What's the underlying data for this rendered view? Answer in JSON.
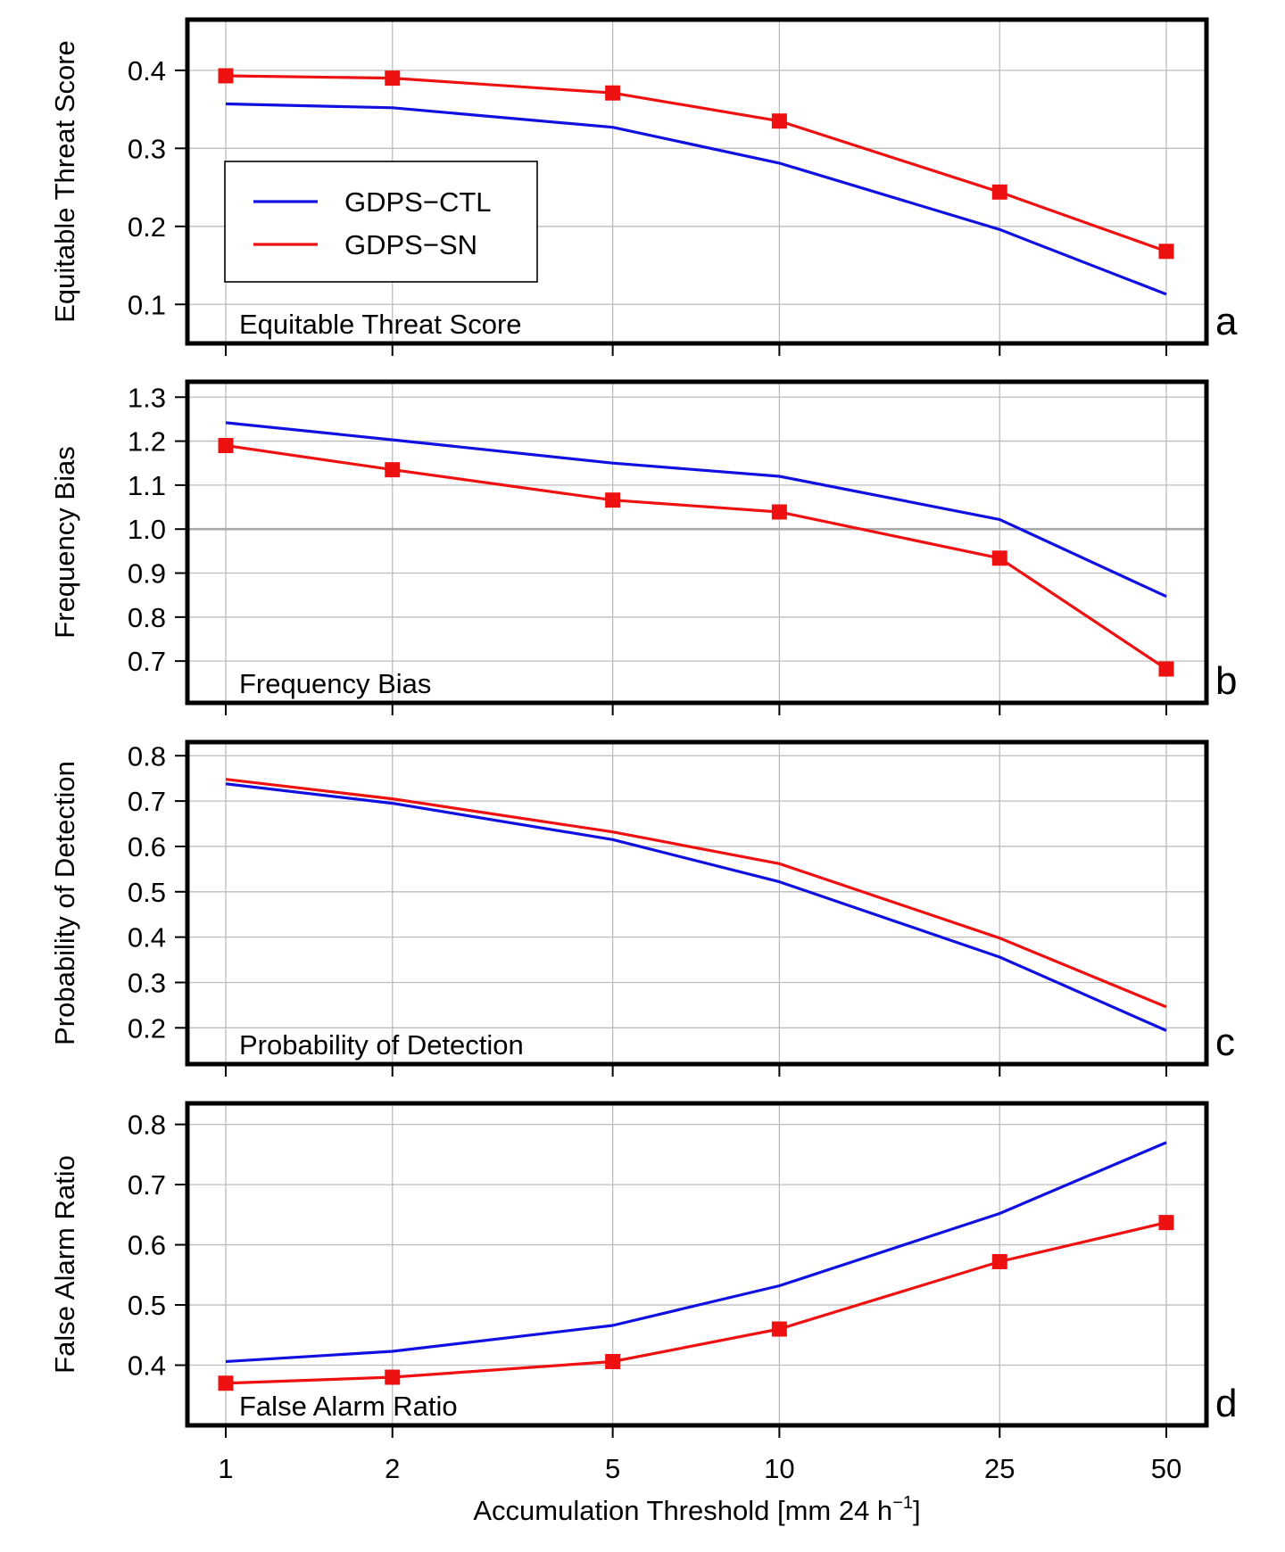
{
  "chart_data": {
    "type": "line",
    "x": [
      1,
      2,
      5,
      10,
      25,
      50
    ],
    "x_ticks": [
      "1",
      "2",
      "5",
      "10",
      "25",
      "50"
    ],
    "x_scale": "log",
    "xlabel": "Accumulation Threshold [mm 24 h",
    "xlabel_sup": "−1",
    "xlabel_end": "]",
    "legend": {
      "placement": "top-left of panel a",
      "entries": [
        {
          "name": "GDPS−CTL",
          "color": "#1010e0"
        },
        {
          "name": "GDPS−SN",
          "color": "#ee1111"
        }
      ]
    },
    "panels": [
      {
        "id": "a",
        "letter": "a",
        "title": "Equitable Threat Score",
        "ylabel": "Equitable Threat Score",
        "ylim": [
          0.05,
          0.465
        ],
        "yticks": [
          0.1,
          0.2,
          0.3,
          0.4
        ],
        "ytick_labels": [
          "0.1",
          "0.2",
          "0.3",
          "0.4"
        ],
        "ref_line": null,
        "series": [
          {
            "name": "GDPS−CTL",
            "values": [
              0.357,
              0.352,
              0.327,
              0.281,
              0.196,
              0.113
            ],
            "markers": false
          },
          {
            "name": "GDPS−SN",
            "values": [
              0.393,
              0.39,
              0.371,
              0.335,
              0.244,
              0.168
            ],
            "markers": true
          }
        ]
      },
      {
        "id": "b",
        "letter": "b",
        "title": "Frequency Bias",
        "ylabel": "Frequency Bias",
        "ylim": [
          0.605,
          1.335
        ],
        "yticks": [
          0.7,
          0.8,
          0.9,
          1.0,
          1.1,
          1.2,
          1.3
        ],
        "ytick_labels": [
          "0.7",
          "0.8",
          "0.9",
          "1.0",
          "1.1",
          "1.2",
          "1.3"
        ],
        "ref_line": 1.0,
        "series": [
          {
            "name": "GDPS−CTL",
            "values": [
              1.242,
              1.203,
              1.15,
              1.12,
              1.022,
              0.847
            ],
            "markers": false
          },
          {
            "name": "GDPS−SN",
            "values": [
              1.19,
              1.135,
              1.066,
              1.039,
              0.934,
              0.682
            ],
            "markers": true
          }
        ]
      },
      {
        "id": "c",
        "letter": "c",
        "title": "Probability of Detection",
        "ylabel": "Probability of Detection",
        "ylim": [
          0.12,
          0.83
        ],
        "yticks": [
          0.2,
          0.3,
          0.4,
          0.5,
          0.6,
          0.7,
          0.8
        ],
        "ytick_labels": [
          "0.2",
          "0.3",
          "0.4",
          "0.5",
          "0.6",
          "0.7",
          "0.8"
        ],
        "ref_line": null,
        "series": [
          {
            "name": "GDPS−CTL",
            "values": [
              0.738,
              0.695,
              0.615,
              0.522,
              0.356,
              0.194
            ],
            "markers": false
          },
          {
            "name": "GDPS−SN",
            "values": [
              0.748,
              0.705,
              0.632,
              0.562,
              0.398,
              0.246
            ],
            "markers": false
          }
        ]
      },
      {
        "id": "d",
        "letter": "d",
        "title": "False Alarm Ratio",
        "ylabel": "False Alarm Ratio",
        "ylim": [
          0.3,
          0.835
        ],
        "yticks": [
          0.4,
          0.5,
          0.6,
          0.7,
          0.8
        ],
        "ytick_labels": [
          "0.4",
          "0.5",
          "0.6",
          "0.7",
          "0.8"
        ],
        "ref_line": null,
        "series": [
          {
            "name": "GDPS−CTL",
            "values": [
              0.406,
              0.423,
              0.466,
              0.532,
              0.652,
              0.77
            ],
            "markers": false
          },
          {
            "name": "GDPS−SN",
            "values": [
              0.37,
              0.38,
              0.406,
              0.46,
              0.572,
              0.637
            ],
            "markers": true
          }
        ]
      }
    ]
  }
}
